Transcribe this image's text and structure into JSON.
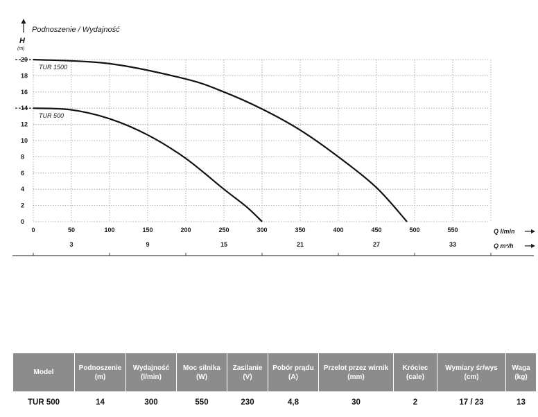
{
  "chart_data": {
    "type": "line",
    "title": "Podnoszenie / Wydajność",
    "ylabel": "H",
    "yunit": "(m)",
    "xlabel": "Q l/min",
    "x2label": "Q m³/h",
    "ylim": [
      0,
      20
    ],
    "xlim": [
      0,
      600
    ],
    "yticks": [
      "0",
      "2",
      "4",
      "6",
      "8",
      "10",
      "12",
      "14",
      "16",
      "18",
      "20"
    ],
    "xticks": [
      "0",
      "50",
      "100",
      "150",
      "200",
      "250",
      "300",
      "350",
      "400",
      "450",
      "500",
      "550"
    ],
    "x2ticks": [
      "3",
      "9",
      "15",
      "21",
      "27",
      "33"
    ],
    "grid": true,
    "series": [
      {
        "name": "TUR 1500",
        "x": [
          0,
          100,
          200,
          250,
          300,
          350,
          400,
          450,
          490
        ],
        "y": [
          20,
          19.5,
          17.6,
          16,
          13.9,
          11.3,
          8,
          4.2,
          0
        ]
      },
      {
        "name": "TUR 500",
        "x": [
          0,
          50,
          100,
          150,
          200,
          250,
          280,
          300
        ],
        "y": [
          14,
          13.8,
          12.7,
          10.7,
          7.8,
          4,
          1.8,
          0
        ]
      }
    ]
  },
  "table": {
    "headers": [
      {
        "line1": "Model",
        "line2": ""
      },
      {
        "line1": "Podnoszenie",
        "line2": "(m)"
      },
      {
        "line1": "Wydajność",
        "line2": "(l/min)"
      },
      {
        "line1": "Moc silnika",
        "line2": "(W)"
      },
      {
        "line1": "Zasilanie",
        "line2": "(V)"
      },
      {
        "line1": "Pobór prądu",
        "line2": "(A)"
      },
      {
        "line1": "Przelot przez wirnik",
        "line2": "(mm)"
      },
      {
        "line1": "Króciec",
        "line2": "(cale)"
      },
      {
        "line1": "Wymiary śr/wys",
        "line2": "(cm)"
      },
      {
        "line1": "Waga",
        "line2": "(kg)"
      }
    ],
    "rows": [
      [
        "TUR 500",
        "14",
        "300",
        "550",
        "230",
        "4,8",
        "30",
        "2",
        "17 / 23",
        "13"
      ]
    ]
  }
}
